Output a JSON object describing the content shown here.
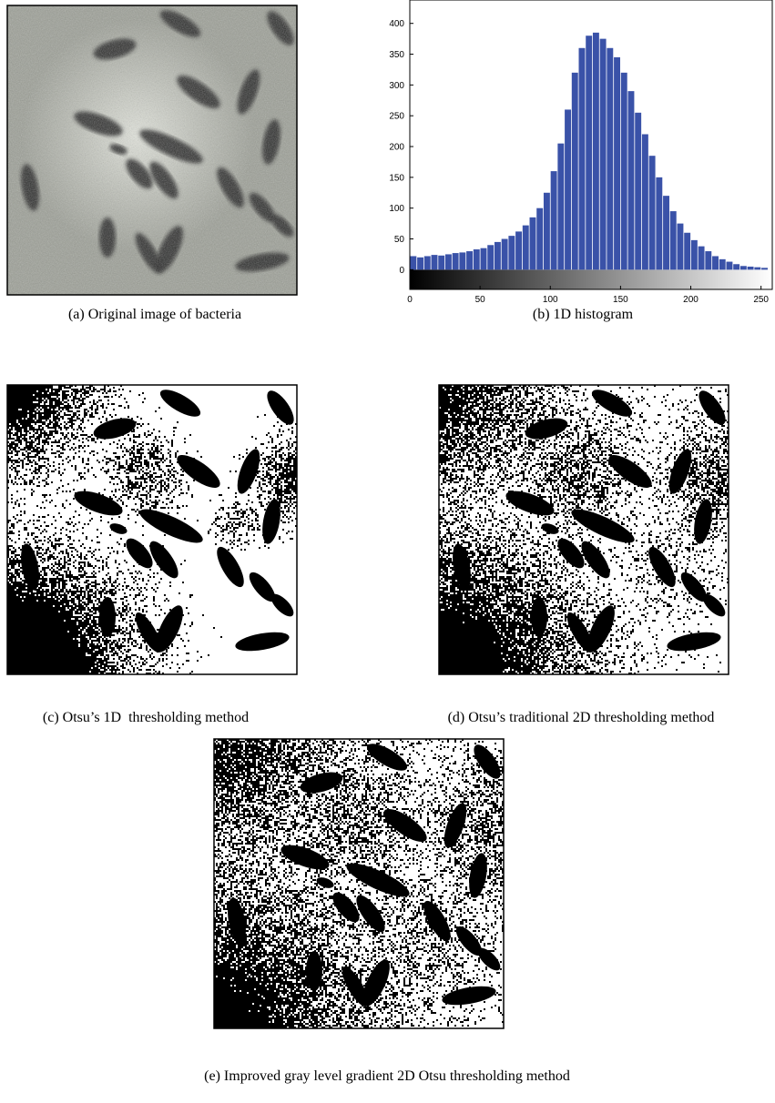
{
  "captions": {
    "a": "(a) Original image of bacteria",
    "b": "(b) 1D histogram",
    "c": "(c) Otsu’s 1D  thresholding method",
    "d": "(d) Otsu’s traditional 2D thresholding method",
    "e": "(e) Improved gray level gradient 2D Otsu thresholding method"
  },
  "chart_data": {
    "type": "histogram",
    "color": "#3a52a8",
    "bins": [
      0,
      5,
      10,
      15,
      20,
      25,
      30,
      35,
      40,
      45,
      50,
      55,
      60,
      65,
      70,
      75,
      80,
      85,
      90,
      95,
      100,
      105,
      110,
      115,
      120,
      125,
      130,
      135,
      140,
      145,
      150,
      155,
      160,
      165,
      170,
      175,
      180,
      185,
      190,
      195,
      200,
      205,
      210,
      215,
      220,
      225,
      230,
      235,
      240,
      245,
      250,
      255
    ],
    "values": [
      22,
      20,
      22,
      24,
      23,
      25,
      27,
      28,
      30,
      33,
      35,
      40,
      45,
      50,
      55,
      62,
      72,
      85,
      100,
      125,
      160,
      205,
      260,
      320,
      360,
      380,
      385,
      375,
      360,
      345,
      320,
      290,
      255,
      220,
      185,
      150,
      120,
      95,
      75,
      60,
      48,
      38,
      30,
      22,
      17,
      13,
      9,
      6,
      5,
      4,
      3
    ],
    "xlim": [
      0,
      258
    ],
    "ylim": [
      -32,
      438
    ],
    "xticks": [
      0,
      50,
      100,
      150,
      200,
      250
    ],
    "yticks": [
      0,
      50,
      100,
      150,
      200,
      250,
      300,
      350,
      400
    ]
  }
}
